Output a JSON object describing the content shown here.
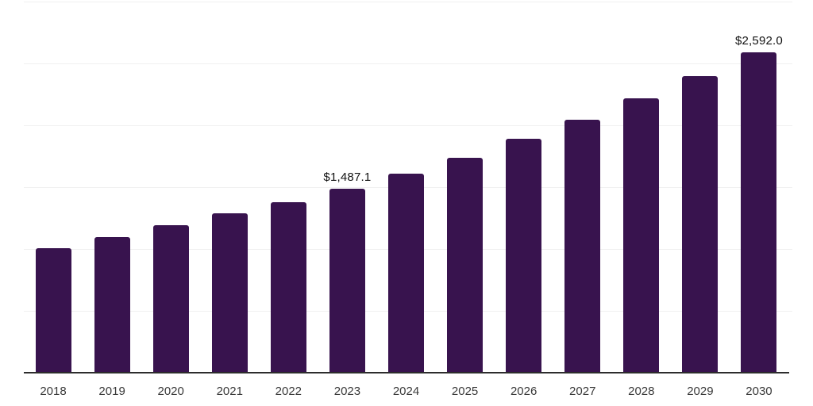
{
  "chart_data": {
    "type": "bar",
    "title": "",
    "categories": [
      "2018",
      "2019",
      "2020",
      "2021",
      "2022",
      "2023",
      "2024",
      "2025",
      "2026",
      "2027",
      "2028",
      "2029",
      "2030"
    ],
    "values": [
      1005,
      1095,
      1190,
      1288,
      1378,
      1487.1,
      1608,
      1740,
      1890,
      2044,
      2216,
      2396,
      2592.0
    ],
    "data_labels": [
      {
        "category": "2023",
        "text": "$1,487.1"
      },
      {
        "category": "2030",
        "text": "$2,592.0"
      }
    ],
    "xlabel": "",
    "ylabel": "",
    "ylim": [
      0,
      3000
    ],
    "gridline_values": [
      500,
      1000,
      1500,
      2000,
      2500,
      3000
    ],
    "grid": true,
    "legend": false,
    "y_axis_labels_visible": false,
    "colors": {
      "bar": "#38134E",
      "gridline": "#F0F0F0",
      "axis_line": "#2D2D2D",
      "tick_label": "#3A3A3A",
      "data_label": "#111111",
      "background": "#FFFFFF"
    }
  }
}
